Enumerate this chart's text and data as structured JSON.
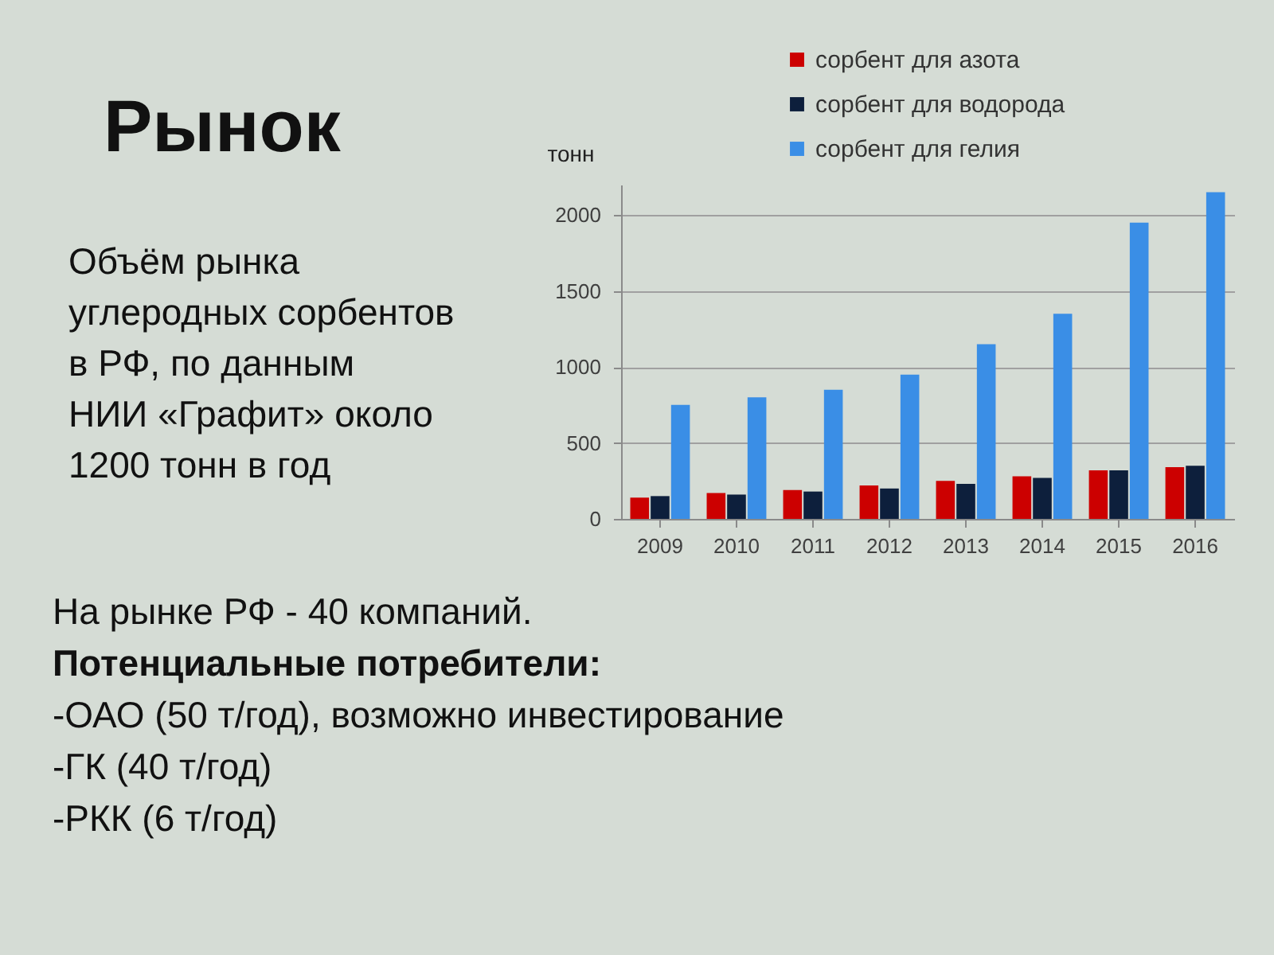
{
  "chart_data": {
    "type": "bar",
    "title": "Рынок",
    "subtitle": "Объём рынка\nуглеродных сорбентов\nв РФ, по данным\nНИИ «Графит» около\n1200 тонн в год",
    "ylabel": "тонн",
    "categories": [
      "2009",
      "2010",
      "2011",
      "2012",
      "2013",
      "2014",
      "2015",
      "2016"
    ],
    "series": [
      {
        "name": "сорбент для азота",
        "color": "#cc0000",
        "values": [
          140,
          170,
          190,
          220,
          250,
          280,
          320,
          340
        ]
      },
      {
        "name": "сорбент для водорода",
        "color": "#0d1f3c",
        "values": [
          150,
          160,
          180,
          200,
          230,
          270,
          320,
          350
        ]
      },
      {
        "name": "сорбент для гелия",
        "color": "#3a8ee6",
        "values": [
          750,
          800,
          850,
          950,
          1150,
          1350,
          1950,
          2150
        ]
      }
    ],
    "ylim": [
      0,
      2200
    ],
    "yticks": [
      0,
      500,
      1000,
      1500,
      2000
    ],
    "grid": "y",
    "legend": "top",
    "annotations": [
      "На рынке РФ - 40 компаний.",
      "Потенциальные потребители:",
      "-ОАО (50 т/год), возможно инвестирование",
      "-ГК (40 т/год)",
      "-РКК (6 т/год)"
    ]
  }
}
